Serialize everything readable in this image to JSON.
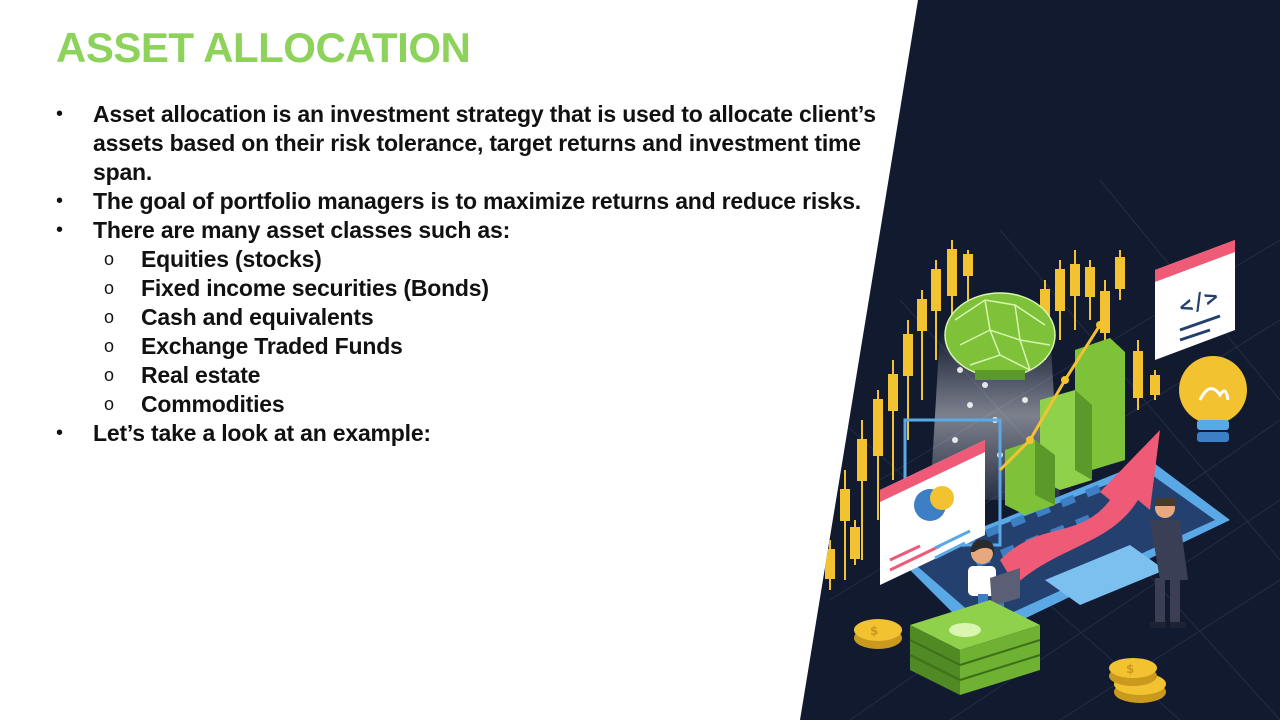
{
  "slide": {
    "title": "ASSET ALLOCATION",
    "bullet_marker": "•",
    "sub_marker": "o",
    "bullets": [
      {
        "text": "Asset allocation is an investment strategy that is used to allocate client’s assets based on their risk tolerance, target returns and investment time span."
      },
      {
        "text": "The goal of portfolio managers is to maximize returns and reduce risks."
      },
      {
        "text": "There are many asset classes such as:",
        "sub_items": [
          "Equities (stocks)",
          "Fixed income securities (Bonds)",
          "Cash and equivalents",
          "Exchange Traded Funds",
          "Real estate",
          "Commodities"
        ]
      },
      {
        "text": "Let’s take a look at an example:"
      }
    ]
  },
  "illustration": {
    "colors": {
      "background": "#121a30",
      "candles": "#f2c230",
      "bars": "#7ec23a",
      "arrow": "#ef5a76",
      "laptop": "#5aa9e6",
      "title": "#8dd35b"
    }
  }
}
